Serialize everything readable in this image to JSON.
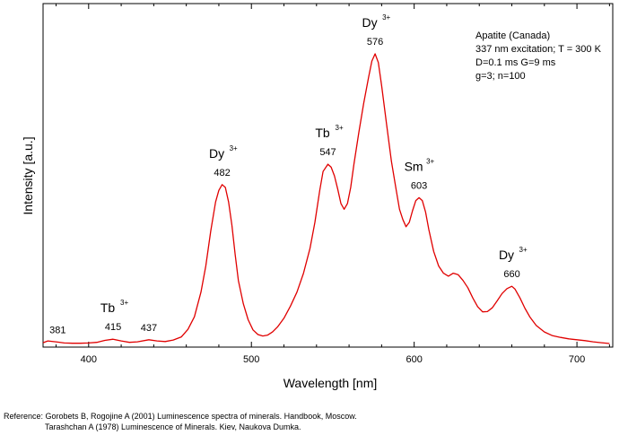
{
  "chart_data": {
    "type": "line",
    "xlabel": "Wavelength [nm]",
    "ylabel": "Intensity [a.u.]",
    "xlim": [
      372,
      722
    ],
    "ylim": [
      0,
      100
    ],
    "x_ticks": [
      400,
      500,
      600,
      700
    ],
    "grid": false,
    "line_color": "#e00000",
    "info": [
      "Apatite (Canada)",
      "337 nm excitation; T = 300 K",
      "D=0.1 ms G=9 ms",
      "g=3; n=100"
    ],
    "series": [
      {
        "points": [
          [
            372,
            0.6
          ],
          [
            375,
            1.2
          ],
          [
            381,
            0.8
          ],
          [
            385,
            0.5
          ],
          [
            390,
            0.4
          ],
          [
            395,
            0.4
          ],
          [
            400,
            0.5
          ],
          [
            405,
            0.7
          ],
          [
            410,
            1.4
          ],
          [
            415,
            1.8
          ],
          [
            420,
            1.2
          ],
          [
            425,
            0.7
          ],
          [
            430,
            0.9
          ],
          [
            437,
            1.6
          ],
          [
            442,
            1.2
          ],
          [
            447,
            1.0
          ],
          [
            452,
            1.5
          ],
          [
            457,
            2.6
          ],
          [
            461,
            5.2
          ],
          [
            465,
            9.5
          ],
          [
            469,
            18
          ],
          [
            472,
            27
          ],
          [
            475,
            39
          ],
          [
            478,
            49
          ],
          [
            480,
            53
          ],
          [
            482,
            55
          ],
          [
            484,
            54
          ],
          [
            486,
            49
          ],
          [
            488,
            41
          ],
          [
            490,
            31
          ],
          [
            492,
            22
          ],
          [
            495,
            14
          ],
          [
            498,
            8.5
          ],
          [
            501,
            5
          ],
          [
            504,
            3.4
          ],
          [
            507,
            2.9
          ],
          [
            510,
            3.2
          ],
          [
            513,
            4.3
          ],
          [
            516,
            6
          ],
          [
            520,
            9
          ],
          [
            524,
            13.2
          ],
          [
            528,
            18
          ],
          [
            532,
            24.5
          ],
          [
            536,
            33
          ],
          [
            539,
            42
          ],
          [
            542,
            53
          ],
          [
            544,
            59.5
          ],
          [
            547,
            62
          ],
          [
            549,
            61
          ],
          [
            551,
            58
          ],
          [
            553,
            53.5
          ],
          [
            555,
            48.5
          ],
          [
            557,
            46.5
          ],
          [
            559,
            48.5
          ],
          [
            561,
            54
          ],
          [
            563,
            62
          ],
          [
            566,
            73
          ],
          [
            569,
            83
          ],
          [
            572,
            92
          ],
          [
            574,
            97.5
          ],
          [
            576,
            100
          ],
          [
            578,
            97
          ],
          [
            580,
            89
          ],
          [
            583,
            76
          ],
          [
            586,
            63
          ],
          [
            589,
            53
          ],
          [
            591,
            46.5
          ],
          [
            593,
            43
          ],
          [
            595,
            40.5
          ],
          [
            597,
            42
          ],
          [
            599,
            46
          ],
          [
            601,
            49.5
          ],
          [
            603,
            50.5
          ],
          [
            605,
            49.5
          ],
          [
            607,
            45.5
          ],
          [
            609,
            39.5
          ],
          [
            612,
            32
          ],
          [
            615,
            27
          ],
          [
            618,
            24.5
          ],
          [
            621,
            23.5
          ],
          [
            624,
            24.5
          ],
          [
            627,
            24
          ],
          [
            630,
            22
          ],
          [
            633,
            19.5
          ],
          [
            636,
            16
          ],
          [
            639,
            13
          ],
          [
            642,
            11.2
          ],
          [
            645,
            11.3
          ],
          [
            648,
            12.6
          ],
          [
            651,
            15
          ],
          [
            654,
            17.5
          ],
          [
            657,
            19.2
          ],
          [
            660,
            20
          ],
          [
            662,
            19
          ],
          [
            665,
            16
          ],
          [
            668,
            12.5
          ],
          [
            671,
            9.5
          ],
          [
            675,
            6.5
          ],
          [
            680,
            4.3
          ],
          [
            685,
            3
          ],
          [
            690,
            2.4
          ],
          [
            695,
            1.9
          ],
          [
            700,
            1.6
          ],
          [
            705,
            1.3
          ],
          [
            710,
            0.9
          ],
          [
            715,
            0.6
          ],
          [
            720,
            0.3
          ]
        ]
      }
    ],
    "annotations": [
      {
        "text": "381",
        "x": 381,
        "y": 0.8
      },
      {
        "text": "415",
        "x": 415,
        "y": 1.8
      },
      {
        "text": "437",
        "x": 437,
        "y": 1.6
      },
      {
        "text": "482",
        "x": 482,
        "y": 55
      },
      {
        "text": "547",
        "x": 547,
        "y": 62
      },
      {
        "text": "576",
        "x": 576,
        "y": 100
      },
      {
        "text": "603",
        "x": 603,
        "y": 50.5
      },
      {
        "text": "660",
        "x": 660,
        "y": 20
      }
    ],
    "ion_labels": [
      {
        "base": "Tb",
        "sup": "3+",
        "x": 415,
        "y": 1.8
      },
      {
        "base": "Dy",
        "sup": "3+",
        "x": 482,
        "y": 55
      },
      {
        "base": "Tb",
        "sup": "3+",
        "x": 547,
        "y": 62
      },
      {
        "base": "Dy",
        "sup": "3+",
        "x": 576,
        "y": 100
      },
      {
        "base": "Sm",
        "sup": "3+",
        "x": 603,
        "y": 50.5
      },
      {
        "base": "Dy",
        "sup": "3+",
        "x": 660,
        "y": 20
      }
    ]
  },
  "reference": {
    "line1": "Reference: Gorobets B, Rogojine A (2001) Luminescence spectra of minerals. Handbook, Moscow.",
    "line2": "Tarashchan A (1978) Luminescence of Minerals. Kiev, Naukova Dumka."
  }
}
